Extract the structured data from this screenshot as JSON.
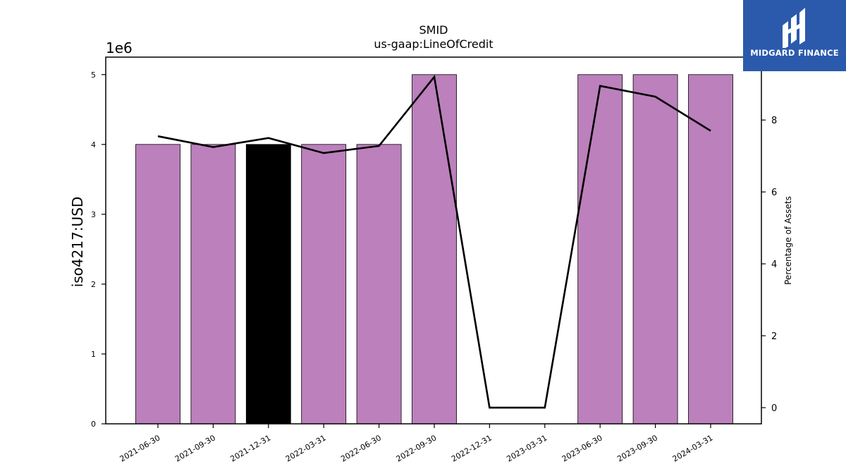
{
  "logo": {
    "text": "MIDGARD FINANCE"
  },
  "chart_data": {
    "type": "bar",
    "title": "SMID",
    "subtitle": "us-gaap:LineOfCredit",
    "ylabel": "iso4217:USD",
    "y2label": "Percentage of Assets",
    "offset_text": "1e6",
    "categories": [
      "2021-06-30",
      "2021-09-30",
      "2021-12-31",
      "2022-03-31",
      "2022-06-30",
      "2022-09-30",
      "2022-12-31",
      "2023-03-31",
      "2023-06-30",
      "2023-09-30",
      "2024-03-31"
    ],
    "bars": {
      "values": [
        4000000,
        4000000,
        4000000,
        4000000,
        4000000,
        5000000,
        null,
        null,
        5000000,
        5000000,
        5000000
      ],
      "colors": [
        "#bc80bd",
        "#bc80bd",
        "#000000",
        "#bc80bd",
        "#bc80bd",
        "#bc80bd",
        "#bc80bd",
        "#bc80bd",
        "#bc80bd",
        "#bc80bd",
        "#bc80bd"
      ]
    },
    "line": {
      "values": [
        7.55,
        7.25,
        7.5,
        7.08,
        7.28,
        9.2,
        0.0,
        0.0,
        8.95,
        8.65,
        7.7
      ],
      "color": "#000000"
    },
    "ylim": [
      0,
      5250000
    ],
    "y2lim": [
      -0.45,
      9.75
    ],
    "yticks": [
      0,
      1,
      2,
      3,
      4,
      5
    ],
    "y2ticks": [
      0,
      2,
      4,
      6,
      8
    ]
  }
}
